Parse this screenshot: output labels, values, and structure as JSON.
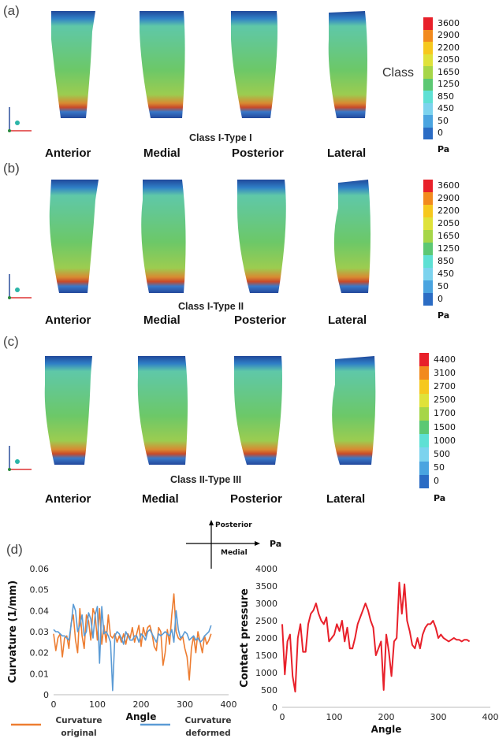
{
  "panels": [
    {
      "letter": "(a)",
      "class_label": "Class I-Type I",
      "side_note": "Class",
      "views": [
        "Anterior",
        "Medial",
        "Posterior",
        "Lateral"
      ],
      "colorbar": {
        "ticks": [
          "3600",
          "2900",
          "2200",
          "2050",
          "1650",
          "1250",
          "850",
          "450",
          "50",
          "0"
        ],
        "unit": "Pa"
      }
    },
    {
      "letter": "(b)",
      "class_label": "Class I-Type II",
      "views": [
        "Anterior",
        "Medial",
        "Posterior",
        "Lateral"
      ],
      "colorbar": {
        "ticks": [
          "3600",
          "2900",
          "2200",
          "2050",
          "1650",
          "1250",
          "850",
          "450",
          "50",
          "0"
        ],
        "unit": "Pa"
      }
    },
    {
      "letter": "(c)",
      "class_label": "Class II-Type III",
      "views": [
        "Anterior",
        "Medial",
        "Posterior",
        "Lateral"
      ],
      "colorbar": {
        "ticks": [
          "4400",
          "3100",
          "2700",
          "2500",
          "1700",
          "1500",
          "1000",
          "500",
          "50",
          "0"
        ],
        "unit": "Pa"
      }
    }
  ],
  "colorbar_colors": [
    "#e8202a",
    "#f28a1e",
    "#f6c81e",
    "#dfe23a",
    "#a6d648",
    "#5cc873",
    "#5ee0d4",
    "#7cd3ee",
    "#4aa4e0",
    "#2b6cc4"
  ],
  "panel_d": {
    "letter": "(d)",
    "compass": {
      "up": "Posterior",
      "right": "Medial"
    },
    "pa_label": "Pa"
  },
  "chart_data": [
    {
      "type": "line",
      "xlabel": "Angle",
      "ylabel": "Curvature (1/mm)",
      "xlim": [
        0,
        400
      ],
      "ylim": [
        0,
        0.06
      ],
      "xticks": [
        0,
        100,
        200,
        300,
        400
      ],
      "yticks": [
        "0",
        "0.01",
        "0.02",
        "0.03",
        "0.04",
        "0.05",
        "0.06"
      ],
      "legend_position": "bottom",
      "series": [
        {
          "name": "Curvature original",
          "color": "#ed7d31",
          "x": [
            0,
            5,
            10,
            15,
            20,
            25,
            30,
            35,
            40,
            45,
            50,
            55,
            60,
            65,
            70,
            75,
            80,
            85,
            90,
            95,
            100,
            105,
            110,
            115,
            120,
            125,
            130,
            135,
            140,
            145,
            150,
            155,
            160,
            165,
            170,
            175,
            180,
            185,
            190,
            195,
            200,
            205,
            210,
            215,
            220,
            225,
            230,
            235,
            240,
            245,
            250,
            255,
            260,
            265,
            270,
            275,
            280,
            285,
            290,
            295,
            300,
            305,
            310,
            315,
            320,
            325,
            330,
            335,
            340,
            345,
            350,
            355,
            360
          ],
          "y": [
            0.029,
            0.021,
            0.027,
            0.029,
            0.018,
            0.027,
            0.028,
            0.022,
            0.034,
            0.038,
            0.026,
            0.02,
            0.041,
            0.028,
            0.022,
            0.038,
            0.035,
            0.026,
            0.041,
            0.038,
            0.026,
            0.041,
            0.024,
            0.033,
            0.025,
            0.038,
            0.028,
            0.027,
            0.029,
            0.025,
            0.028,
            0.025,
            0.029,
            0.024,
            0.029,
            0.027,
            0.032,
            0.025,
            0.029,
            0.033,
            0.023,
            0.032,
            0.028,
            0.032,
            0.033,
            0.029,
            0.023,
            0.021,
            0.032,
            0.03,
            0.014,
            0.02,
            0.031,
            0.024,
            0.038,
            0.048,
            0.03,
            0.027,
            0.026,
            0.028,
            0.022,
            0.018,
            0.007,
            0.022,
            0.028,
            0.02,
            0.03,
            0.025,
            0.02,
            0.028,
            0.024,
            0.026,
            0.029
          ]
        },
        {
          "name": "Curvature deformed",
          "color": "#5b9bd5",
          "x": [
            0,
            5,
            10,
            15,
            20,
            25,
            30,
            35,
            40,
            45,
            50,
            55,
            60,
            65,
            70,
            75,
            80,
            85,
            90,
            95,
            100,
            105,
            110,
            115,
            120,
            125,
            130,
            135,
            140,
            145,
            150,
            155,
            160,
            165,
            170,
            175,
            180,
            185,
            190,
            195,
            200,
            205,
            210,
            215,
            220,
            225,
            230,
            235,
            240,
            245,
            250,
            255,
            260,
            265,
            270,
            275,
            280,
            285,
            290,
            295,
            300,
            305,
            310,
            315,
            320,
            325,
            330,
            335,
            340,
            345,
            350,
            355,
            360
          ],
          "y": [
            0.031,
            0.03,
            0.03,
            0.029,
            0.028,
            0.028,
            0.027,
            0.026,
            0.033,
            0.043,
            0.04,
            0.03,
            0.033,
            0.038,
            0.028,
            0.03,
            0.039,
            0.036,
            0.027,
            0.038,
            0.042,
            0.015,
            0.042,
            0.029,
            0.03,
            0.028,
            0.025,
            0.002,
            0.028,
            0.03,
            0.029,
            0.027,
            0.024,
            0.03,
            0.028,
            0.026,
            0.026,
            0.028,
            0.028,
            0.025,
            0.029,
            0.028,
            0.026,
            0.03,
            0.031,
            0.029,
            0.027,
            0.025,
            0.029,
            0.028,
            0.029,
            0.03,
            0.029,
            0.028,
            0.031,
            0.025,
            0.04,
            0.031,
            0.027,
            0.028,
            0.03,
            0.029,
            0.026,
            0.027,
            0.028,
            0.026,
            0.027,
            0.025,
            0.026,
            0.028,
            0.029,
            0.03,
            0.033
          ]
        }
      ]
    },
    {
      "type": "line",
      "xlabel": "Angle",
      "ylabel": "Contact pressure",
      "xlim": [
        0,
        400
      ],
      "ylim": [
        0,
        4000
      ],
      "xticks": [
        0,
        100,
        200,
        300,
        400
      ],
      "yticks": [
        "0",
        "500",
        "1000",
        "1500",
        "2000",
        "2500",
        "3000",
        "3500",
        "4000"
      ],
      "series": [
        {
          "color": "#e8202a",
          "x": [
            0,
            5,
            10,
            15,
            20,
            25,
            30,
            35,
            40,
            45,
            50,
            55,
            60,
            65,
            70,
            75,
            80,
            85,
            90,
            95,
            100,
            105,
            110,
            115,
            120,
            125,
            130,
            135,
            140,
            145,
            150,
            155,
            160,
            165,
            170,
            175,
            180,
            185,
            190,
            195,
            200,
            205,
            210,
            215,
            220,
            225,
            230,
            235,
            240,
            245,
            250,
            255,
            260,
            265,
            270,
            275,
            280,
            285,
            290,
            295,
            300,
            305,
            310,
            315,
            320,
            325,
            330,
            335,
            340,
            345,
            350,
            355,
            360
          ],
          "y": [
            2400,
            950,
            1900,
            2100,
            900,
            450,
            2000,
            2400,
            1600,
            1600,
            2400,
            2700,
            2800,
            3000,
            2700,
            2500,
            2400,
            2600,
            1900,
            2000,
            2100,
            2400,
            2200,
            2500,
            1900,
            2300,
            1700,
            1700,
            2000,
            2400,
            2600,
            2800,
            3000,
            2800,
            2500,
            2300,
            1500,
            1700,
            1900,
            500,
            2100,
            1600,
            900,
            1900,
            2000,
            3600,
            2700,
            3550,
            2500,
            2200,
            1800,
            1700,
            2000,
            1700,
            2100,
            2300,
            2400,
            2400,
            2500,
            2300,
            2000,
            2100,
            2000,
            1950,
            1900,
            1950,
            2000,
            1950,
            1950,
            1900,
            1950,
            1950,
            1900
          ]
        }
      ]
    }
  ]
}
